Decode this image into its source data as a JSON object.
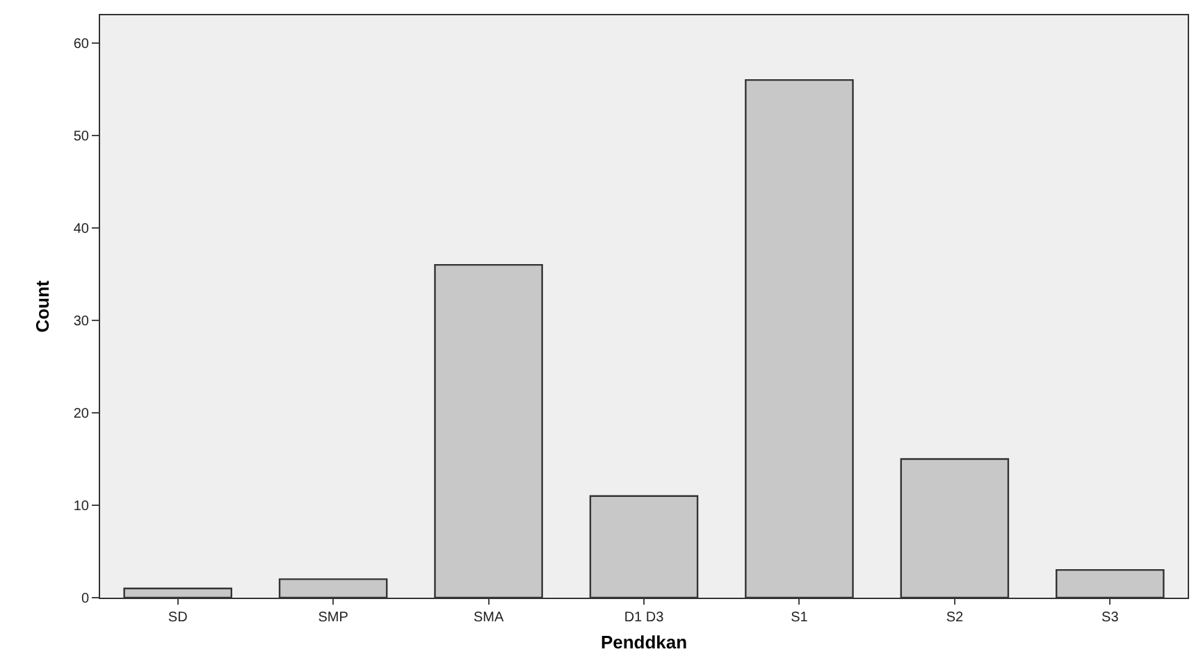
{
  "chart_data": {
    "type": "bar",
    "xlabel": "Penddkan",
    "ylabel": "Count",
    "categories": [
      "SD",
      "SMP",
      "SMA",
      "D1 D3",
      "S1",
      "S2",
      "S3"
    ],
    "values": [
      1,
      2,
      36,
      11,
      56,
      15,
      3
    ],
    "color": "#c8c8c8",
    "ylim": [
      0,
      63
    ],
    "yticks": [
      0,
      10,
      20,
      30,
      40,
      50,
      60
    ],
    "grid": false
  }
}
